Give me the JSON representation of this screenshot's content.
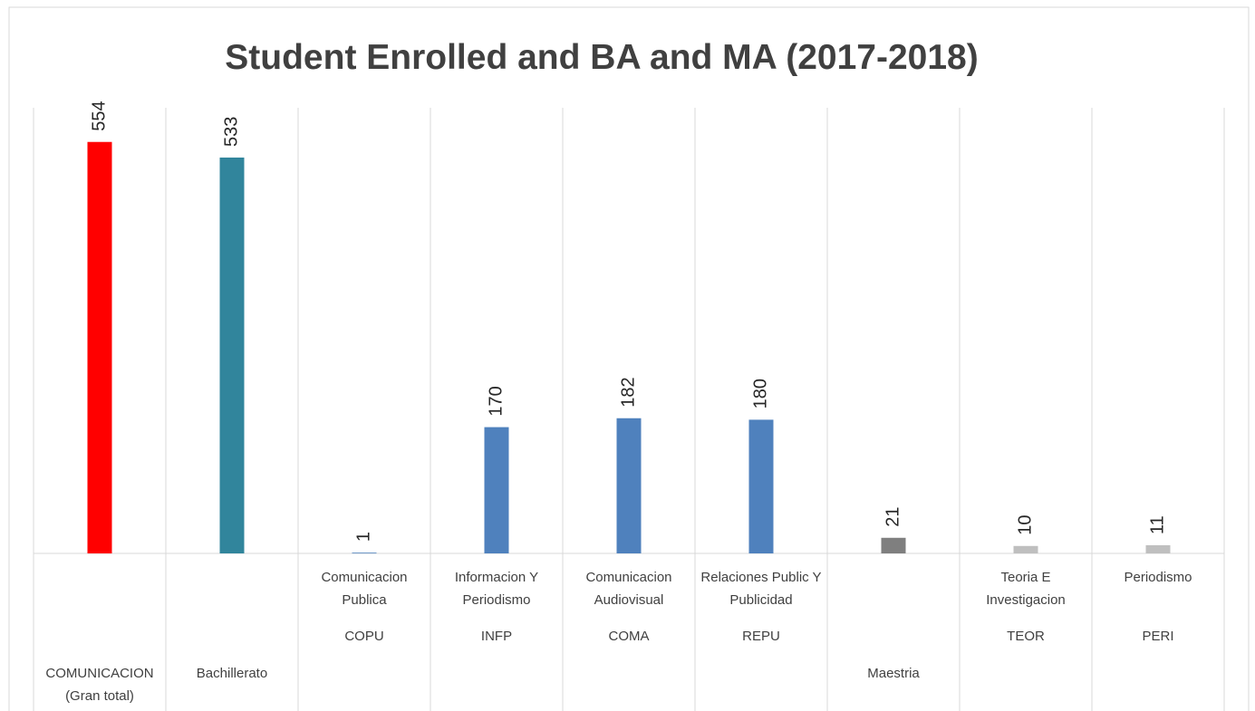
{
  "chart_data": {
    "type": "bar",
    "title": "Student Enrolled and BA and MA (2017-2018)",
    "categories": [
      null,
      null,
      "Comunicacion Publica",
      "Informacion Y Periodismo",
      "Comunicacion Audiovisual",
      "Relaciones Public Y Publicidad",
      null,
      "Teoria E Investigacion",
      "Periodismo"
    ],
    "codes": [
      null,
      null,
      "COPU",
      "INFP",
      "COMA",
      "REPU",
      null,
      "TEOR",
      "PERI"
    ],
    "groups": [
      "COMUNICACION (Gran total)",
      "Bachillerato",
      null,
      null,
      null,
      null,
      "Maestria",
      null,
      null
    ],
    "values": [
      554,
      533,
      1,
      170,
      182,
      180,
      21,
      10,
      11
    ],
    "colors": [
      "#ff0000",
      "#31859c",
      "#4f81bd",
      "#4f81bd",
      "#4f81bd",
      "#4f81bd",
      "#7f7f7f",
      "#bfbfbf",
      "#bfbfbf"
    ],
    "ylim": [
      0,
      600
    ]
  }
}
